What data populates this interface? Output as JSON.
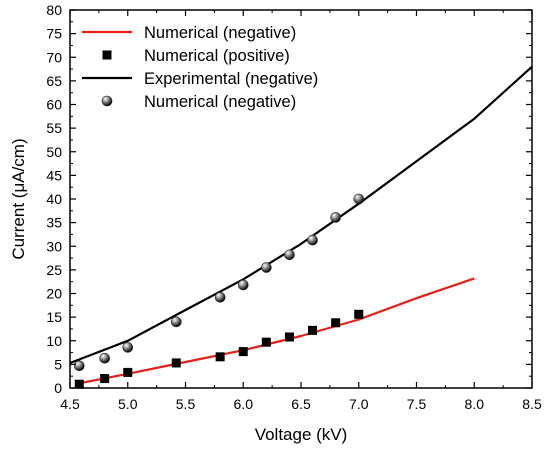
{
  "chart_data": {
    "type": "line",
    "xlabel": "Voltage (kV)",
    "ylabel": "Current (μA/cm)",
    "xlim": [
      4.5,
      8.5
    ],
    "ylim": [
      0,
      80
    ],
    "xticks": [
      "4.5",
      "5.0",
      "5.5",
      "6.0",
      "6.5",
      "7.0",
      "7.5",
      "8.0",
      "8.5"
    ],
    "yticks": [
      "0",
      "5",
      "10",
      "15",
      "20",
      "25",
      "30",
      "35",
      "40",
      "45",
      "50",
      "55",
      "60",
      "65",
      "70",
      "75",
      "80"
    ],
    "grid": false,
    "legend_position": "top-left",
    "series": [
      {
        "name": "Numerical (negative)",
        "style": "line",
        "color": "#e8201c",
        "x": [
          4.58,
          5.0,
          5.5,
          6.0,
          6.5,
          7.0,
          7.5,
          8.0
        ],
        "y": [
          1.0,
          3.0,
          5.5,
          8.0,
          11.0,
          14.5,
          19.0,
          23.2
        ]
      },
      {
        "name": "Numerical (positive)",
        "style": "square-marker",
        "color": "#000000",
        "x": [
          4.58,
          4.8,
          5.0,
          5.42,
          5.8,
          6.0,
          6.2,
          6.4,
          6.6,
          6.8,
          7.0
        ],
        "y": [
          0.8,
          2.0,
          3.3,
          5.3,
          6.6,
          7.7,
          9.7,
          10.8,
          12.2,
          13.8,
          15.6
        ]
      },
      {
        "name": "Experimental (negative)",
        "style": "line",
        "color": "#000000",
        "x": [
          4.5,
          5.0,
          5.5,
          6.0,
          6.5,
          7.0,
          7.5,
          8.0,
          8.5
        ],
        "y": [
          5.3,
          10.0,
          16.5,
          23.0,
          30.5,
          39.0,
          48.0,
          57.0,
          68.0
        ]
      },
      {
        "name": "Numerical (negative)",
        "style": "sphere-marker",
        "color": "#000000",
        "x": [
          4.58,
          4.8,
          5.0,
          5.42,
          5.8,
          6.0,
          6.2,
          6.4,
          6.6,
          6.8,
          7.0
        ],
        "y": [
          4.7,
          6.3,
          8.6,
          14.0,
          19.2,
          21.8,
          25.5,
          28.2,
          31.3,
          36.1,
          40.0
        ]
      }
    ]
  }
}
